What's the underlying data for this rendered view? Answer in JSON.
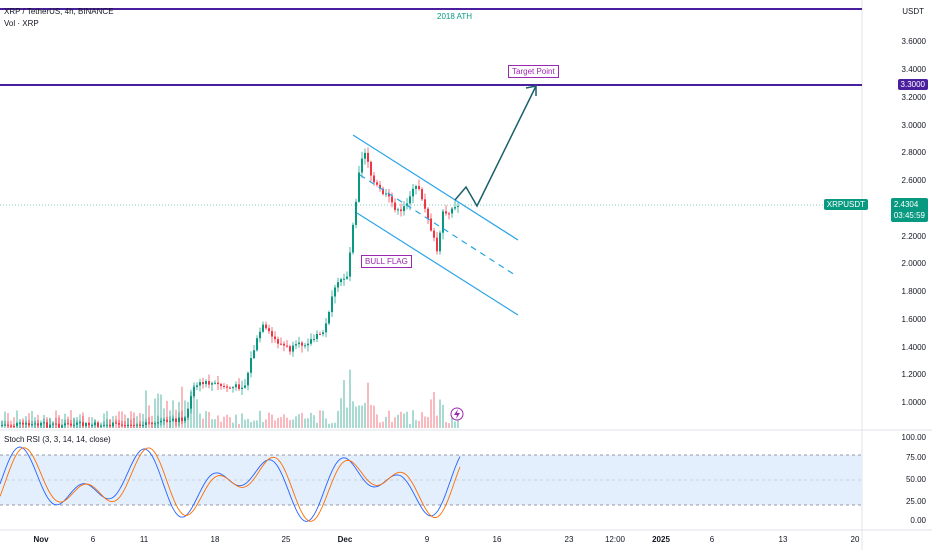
{
  "header": {
    "symbol_line": "XRP / TetherUS, 4h, BINANCE",
    "volume_label": "Vol · XRP",
    "indicator_label": "Stoch RSI (3, 3, 14, 14, close)"
  },
  "price_axis": {
    "currency": "USDT",
    "ticks": [
      "3.6000",
      "3.4000",
      "3.2000",
      "3.0000",
      "2.8000",
      "2.6000",
      "2.4000",
      "2.2000",
      "2.0000",
      "1.8000",
      "1.6000",
      "1.4000",
      "1.2000",
      "1.0000"
    ]
  },
  "indicator_axis": {
    "ticks": [
      "100.00",
      "75.00",
      "50.00",
      "25.00",
      "0.00"
    ]
  },
  "time_axis": {
    "ticks": [
      "Nov",
      "6",
      "11",
      "18",
      "25",
      "Dec",
      "9",
      "16",
      "23",
      "12:00",
      "2025",
      "6",
      "13",
      "20"
    ]
  },
  "annotations": {
    "ath_label": "2018 ATH",
    "target_label": "Target Point",
    "target_price": "3.3000",
    "pattern_label": "BULL FLAG"
  },
  "last_price": {
    "symbol": "XRPUSDT",
    "value": "2.4304",
    "countdown": "03:45:59"
  },
  "colors": {
    "up": "#089981",
    "down": "#f23645",
    "ath_line": "#4a1f9e",
    "channel": "#2aa4e8",
    "projection": "#1a5f6b",
    "stoch_k": "#2962ff",
    "stoch_d": "#ff6d00"
  }
}
